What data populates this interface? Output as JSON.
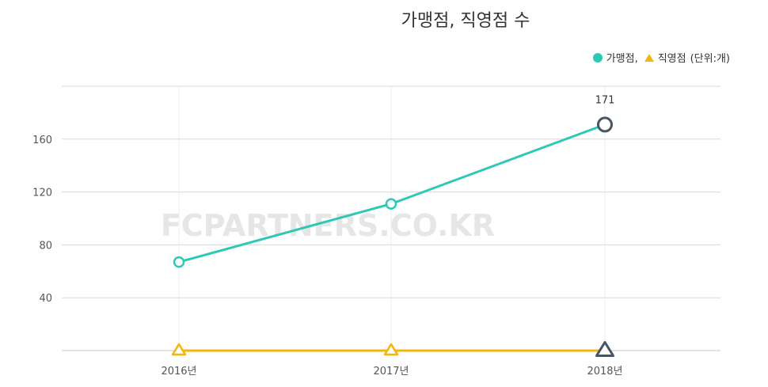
{
  "chart_data": {
    "type": "line",
    "title": "가맹점, 직영점 수",
    "categories": [
      "2016년",
      "2017년",
      "2018년"
    ],
    "series": [
      {
        "name": "가맹점,",
        "values": [
          67,
          111,
          171
        ],
        "color": "#2ec9b5",
        "marker": "circle"
      },
      {
        "name": "직영점",
        "values": [
          0,
          0,
          0
        ],
        "color": "#f5b50c",
        "marker": "triangle"
      }
    ],
    "ylim": [
      0,
      200
    ],
    "yticks": [
      "40",
      "80",
      "120",
      "160"
    ],
    "grid": true,
    "legend_position": "top-right",
    "unit_label": "(단위:개)",
    "highlight_color": "#4a5563",
    "annotations": [
      {
        "category": "2018년",
        "text": "171"
      }
    ]
  },
  "watermark": "FCPARTNERS.CO.KR"
}
